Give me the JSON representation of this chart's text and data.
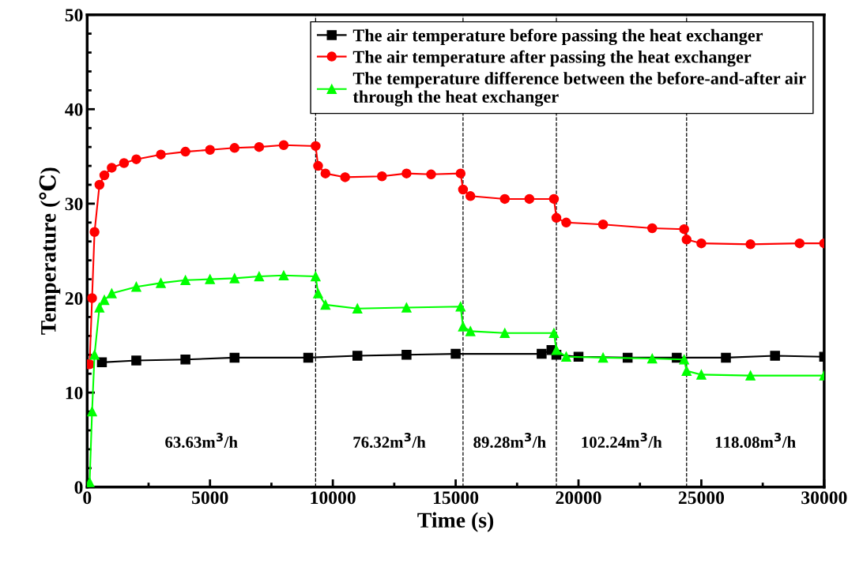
{
  "chart_data": {
    "type": "line",
    "xlabel": "Time (s)",
    "ylabel": "Temperature (℃)",
    "xlim": [
      0,
      30000
    ],
    "xticks": [
      0,
      5000,
      10000,
      15000,
      20000,
      25000,
      30000
    ],
    "ylim": [
      0,
      50
    ],
    "yticks": [
      0,
      10,
      20,
      30,
      40,
      50
    ],
    "grid": false,
    "legend": "top right",
    "line_style": "solid",
    "series": [
      {
        "name": "The air temperature before passing the heat exchanger",
        "color": "#000000",
        "marker": "square",
        "x": [
          600,
          2000,
          4000,
          6000,
          9000,
          11000,
          13000,
          15000,
          18500,
          18900,
          19100,
          20000,
          22000,
          24000,
          26000,
          28000,
          30000
        ],
        "values": [
          13.2,
          13.4,
          13.5,
          13.7,
          13.7,
          13.9,
          14,
          14.1,
          14.1,
          14.5,
          14,
          13.8,
          13.7,
          13.7,
          13.7,
          13.9,
          13.8
        ]
      },
      {
        "name": "The air temperature after passing the heat exchanger",
        "color": "#ff0000",
        "marker": "circle",
        "x": [
          0,
          100,
          200,
          300,
          500,
          700,
          1000,
          1500,
          2000,
          3000,
          4000,
          5000,
          6000,
          7000,
          8000,
          9300,
          9400,
          9700,
          10500,
          12000,
          13000,
          14000,
          15200,
          15300,
          15600,
          17000,
          18000,
          19000,
          19100,
          19500,
          21000,
          23000,
          24300,
          24400,
          25000,
          27000,
          29000,
          30000
        ],
        "values": [
          13,
          13,
          20,
          27,
          32,
          33,
          33.8,
          34.3,
          34.7,
          35.2,
          35.5,
          35.7,
          35.9,
          36,
          36.2,
          36.1,
          34,
          33.2,
          32.8,
          32.9,
          33.2,
          33.1,
          33.2,
          31.5,
          30.8,
          30.5,
          30.5,
          30.5,
          28.5,
          28,
          27.8,
          27.4,
          27.3,
          26.2,
          25.8,
          25.7,
          25.8,
          25.8
        ]
      },
      {
        "name": "The temperature difference between the before-and-after air\nthrough the heat exchanger",
        "color": "#00ff00",
        "marker": "triangle",
        "x": [
          0,
          100,
          200,
          300,
          500,
          700,
          1000,
          2000,
          3000,
          4000,
          5000,
          6000,
          7000,
          8000,
          9300,
          9400,
          9700,
          11000,
          13000,
          15200,
          15300,
          15600,
          17000,
          19000,
          19100,
          19500,
          21000,
          23000,
          24300,
          24400,
          25000,
          27000,
          30000
        ],
        "values": [
          0,
          0.5,
          8,
          14,
          19,
          19.8,
          20.5,
          21.2,
          21.6,
          21.9,
          22,
          22.1,
          22.3,
          22.4,
          22.3,
          20.5,
          19.3,
          18.9,
          19,
          19.1,
          17,
          16.5,
          16.3,
          16.3,
          14.5,
          13.8,
          13.7,
          13.6,
          13.5,
          12.3,
          11.9,
          11.8,
          11.8
        ]
      }
    ],
    "ref_lines": [
      {
        "axis": "x",
        "value": 9300,
        "color": "#000000",
        "line_style": "dashed"
      },
      {
        "axis": "x",
        "value": 15300,
        "color": "#000000",
        "line_style": "dashed"
      },
      {
        "axis": "x",
        "value": 19100,
        "color": "#000000",
        "line_style": "dashed"
      },
      {
        "axis": "x",
        "value": 24400,
        "color": "#000000",
        "line_style": "dashed"
      }
    ],
    "annotations": [
      "63.63m$^{3}$/h",
      "76.32m$^{3}$/h",
      "89.28m$^{3}$/h",
      "102.24m$^{3}$/h",
      "118.08m$^{3}$/h"
    ]
  }
}
